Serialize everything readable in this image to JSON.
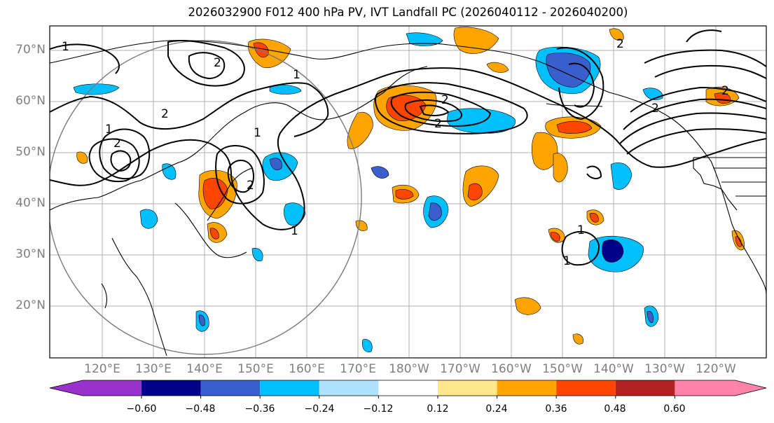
{
  "title": "2026032900 F012 400 hPa PV, IVT Landfall PC (2026040112 - 2026040200)",
  "lat_labels": [
    "70°N",
    "60°N",
    "50°N",
    "40°N",
    "30°N",
    "20°N"
  ],
  "lon_labels": [
    "120°E",
    "130°E",
    "140°E",
    "150°E",
    "160°E",
    "170°E",
    "180°W",
    "170°W",
    "160°W",
    "150°W",
    "140°W",
    "130°W",
    "120°W"
  ],
  "contour_labels": [
    "1",
    "2"
  ],
  "colorbar": {
    "ticks": [
      "−0.60",
      "−0.48",
      "−0.36",
      "−0.24",
      "−0.12",
      "0.12",
      "0.24",
      "0.36",
      "0.48",
      "0.60"
    ],
    "colors": [
      "#9932cc",
      "#00008b",
      "#3a5fcd",
      "#00bfff",
      "#b0e2ff",
      "#ffffff",
      "#ffe78a",
      "#ffa500",
      "#ff4500",
      "#b22222",
      "#ff82ab"
    ]
  }
}
